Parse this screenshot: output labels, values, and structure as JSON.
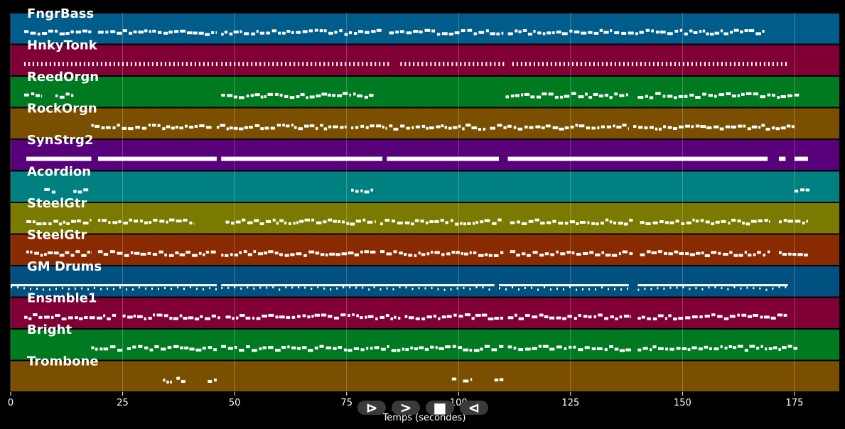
{
  "chart_data": {
    "type": "piano-roll",
    "xlabel": "Temps (secondes)",
    "xlim": [
      0,
      185
    ],
    "x_ticks": [
      0,
      25,
      50,
      75,
      100,
      125,
      150,
      175
    ],
    "grid": true,
    "tracks": [
      {
        "name": "FngrBass",
        "color": "#005c8a",
        "style": "dense",
        "segments": [
          [
            3,
            18
          ],
          [
            19.5,
            46
          ],
          [
            47,
            83
          ],
          [
            84.5,
            110
          ],
          [
            111,
            168.5
          ]
        ]
      },
      {
        "name": "HnkyTonk",
        "color": "#800035",
        "style": "staccato",
        "segments": [
          [
            3,
            46
          ],
          [
            47,
            85
          ],
          [
            87,
            110
          ],
          [
            112,
            173.5
          ]
        ]
      },
      {
        "name": "ReedOrgn",
        "color": "#007a20",
        "style": "dense",
        "segments": [
          [
            3,
            7
          ],
          [
            10,
            14
          ],
          [
            47,
            76
          ],
          [
            76.5,
            81
          ],
          [
            110.5,
            138
          ],
          [
            140,
            176
          ]
        ]
      },
      {
        "name": "RockOrgn",
        "color": "#7a5000",
        "style": "dense",
        "segments": [
          [
            18,
            45
          ],
          [
            46,
            75
          ],
          [
            76,
            84
          ],
          [
            84.5,
            106
          ],
          [
            107,
            138
          ],
          [
            139,
            175
          ]
        ]
      },
      {
        "name": "SynStrg2",
        "color": "#58007a",
        "style": "sustained",
        "segments": [
          [
            3.5,
            18
          ],
          [
            19.5,
            46
          ],
          [
            47,
            83
          ],
          [
            84,
            109
          ],
          [
            111,
            169
          ],
          [
            171.5,
            173
          ],
          [
            175,
            178
          ]
        ]
      },
      {
        "name": "Acordion",
        "color": "#008080",
        "style": "dense",
        "segments": [
          [
            7.5,
            10
          ],
          [
            14,
            17.5
          ],
          [
            76,
            81
          ],
          [
            175,
            178.5
          ]
        ]
      },
      {
        "name": "SteelGtr",
        "color": "#7a7a00",
        "style": "dense",
        "segments": [
          [
            3.5,
            18
          ],
          [
            19.5,
            41
          ],
          [
            48,
            81.5
          ],
          [
            82.5,
            110
          ],
          [
            111.5,
            139
          ],
          [
            140.5,
            169.5
          ],
          [
            171.5,
            178
          ]
        ]
      },
      {
        "name": "SteelGtr",
        "color": "#8a2a00",
        "style": "dense",
        "segments": [
          [
            3.5,
            18
          ],
          [
            19.5,
            46
          ],
          [
            47,
            81.5
          ],
          [
            82.5,
            110
          ],
          [
            111.5,
            139
          ],
          [
            140.5,
            169.5
          ],
          [
            171.5,
            178
          ]
        ]
      },
      {
        "name": "GM Drums",
        "color": "#005080",
        "style": "drums",
        "segments": [
          [
            0,
            46
          ],
          [
            47,
            81
          ],
          [
            81,
            108
          ],
          [
            109,
            138
          ],
          [
            140,
            173.5
          ]
        ]
      },
      {
        "name": "Ensmble1",
        "color": "#800035",
        "style": "dense",
        "segments": [
          [
            3,
            23.5
          ],
          [
            25,
            47
          ],
          [
            48,
            87
          ],
          [
            88,
            110
          ],
          [
            111,
            138.5
          ],
          [
            140,
            173.5
          ]
        ]
      },
      {
        "name": "Bright",
        "color": "#007a20",
        "style": "dense",
        "segments": [
          [
            18,
            25
          ],
          [
            26,
            46
          ],
          [
            47,
            84.5
          ],
          [
            85,
            110
          ],
          [
            111,
            138.5
          ],
          [
            140,
            176
          ]
        ]
      },
      {
        "name": "Trombone",
        "color": "#7a5000",
        "style": "sparse",
        "segments": [
          [
            34,
            36
          ],
          [
            37,
            39
          ],
          [
            44,
            46
          ],
          [
            98.5,
            99.5
          ],
          [
            101,
            103
          ],
          [
            108,
            110
          ]
        ]
      }
    ]
  },
  "controls": {
    "play_label": "⊳",
    "forward_label": ">",
    "stop_label": "■",
    "back_label": "⊲"
  }
}
